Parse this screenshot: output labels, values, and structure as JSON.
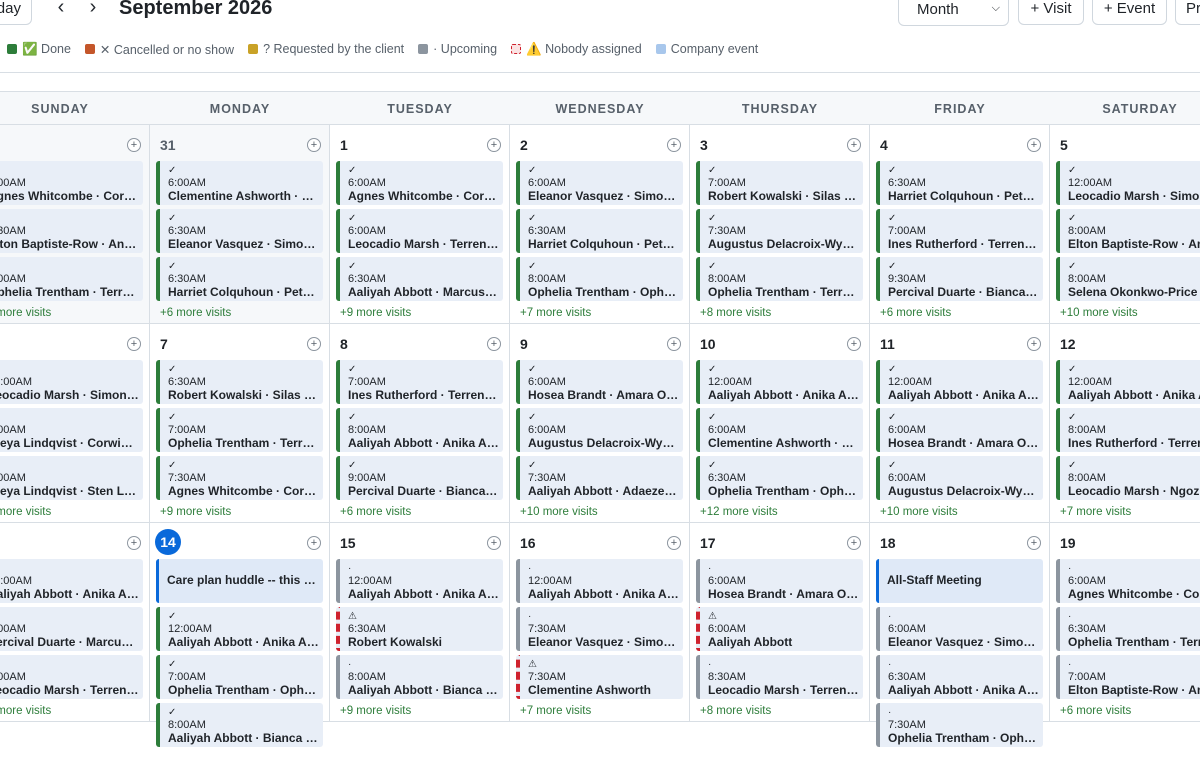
{
  "header": {
    "today_label": "Today",
    "prev_icon": "chevron-left-icon",
    "next_icon": "chevron-right-icon",
    "month_title": "September 2026",
    "view_select": {
      "value": "Month",
      "icon": "chevron-down-icon"
    },
    "add_visit_label": "+ Visit",
    "add_event_label": "+ Event",
    "print_label": "Print"
  },
  "legend": [
    {
      "label": "✅ Done",
      "color": "#2d7d3a"
    },
    {
      "label": "✕ Cancelled or no show",
      "color": "#c4562a"
    },
    {
      "label": "? Requested by the client",
      "color": "#c9a227"
    },
    {
      "label": "· Upcoming",
      "color": "#8c959f"
    },
    {
      "label": "⚠️ Nobody assigned",
      "color": "#cf222e",
      "style": "dashed"
    },
    {
      "label": "Company event",
      "color": "#a8c7ec"
    }
  ],
  "weekdays": [
    "SUNDAY",
    "MONDAY",
    "TUESDAY",
    "WEDNESDAY",
    "THURSDAY",
    "FRIDAY",
    "SATURDAY"
  ],
  "weeks": [
    [
      {
        "day": "30",
        "outside": true,
        "visits": [
          {
            "status": "done",
            "mark": "✓",
            "time": "6:00AM",
            "names": "Agnes Whitcombe · Corwin Al..."
          },
          {
            "status": "done",
            "mark": "✓",
            "time": "6:30AM",
            "names": "Elton Baptiste-Row · Anika Ab..."
          },
          {
            "status": "done",
            "mark": "✓",
            "time": "8:00AM",
            "names": "Ophelia Trentham · Terrence..."
          }
        ],
        "more": "+7 more visits"
      },
      {
        "day": "31",
        "outside": true,
        "visits": [
          {
            "status": "done",
            "mark": "✓",
            "time": "6:00AM",
            "names": "Clementine Ashworth · Kw..."
          },
          {
            "status": "done",
            "mark": "✓",
            "time": "6:30AM",
            "names": "Eleanor Vasquez · Simone ..."
          },
          {
            "status": "done",
            "mark": "✓",
            "time": "6:30AM",
            "names": "Harriet Colquhoun · Petra ..."
          }
        ],
        "more": "+6 more visits"
      },
      {
        "day": "1",
        "visits": [
          {
            "status": "done",
            "mark": "✓",
            "time": "6:00AM",
            "names": "Agnes Whitcombe · Corwi..."
          },
          {
            "status": "done",
            "mark": "✓",
            "time": "6:00AM",
            "names": "Leocadio Marsh · Terrence..."
          },
          {
            "status": "done",
            "mark": "✓",
            "time": "6:30AM",
            "names": "Aaliyah Abbott · Marcus D..."
          }
        ],
        "more": "+9 more visits"
      },
      {
        "day": "2",
        "visits": [
          {
            "status": "done",
            "mark": "✓",
            "time": "6:00AM",
            "names": "Eleanor Vasquez · Simone ..."
          },
          {
            "status": "done",
            "mark": "✓",
            "time": "6:30AM",
            "names": "Harriet Colquhoun · Petra ..."
          },
          {
            "status": "done",
            "mark": "✓",
            "time": "8:00AM",
            "names": "Ophelia Trentham · Opheli..."
          }
        ],
        "more": "+7 more visits"
      },
      {
        "day": "3",
        "visits": [
          {
            "status": "done",
            "mark": "✓",
            "time": "7:00AM",
            "names": "Robert Kowalski · Silas Br..."
          },
          {
            "status": "done",
            "mark": "✓",
            "time": "7:30AM",
            "names": "Augustus Delacroix-Wynn ..."
          },
          {
            "status": "done",
            "mark": "✓",
            "time": "8:00AM",
            "names": "Ophelia Trentham · Terren..."
          }
        ],
        "more": "+8 more visits"
      },
      {
        "day": "4",
        "visits": [
          {
            "status": "done",
            "mark": "✓",
            "time": "6:30AM",
            "names": "Harriet Colquhoun · Petra ..."
          },
          {
            "status": "done",
            "mark": "✓",
            "time": "7:00AM",
            "names": "Ines Rutherford · Terrence..."
          },
          {
            "status": "done",
            "mark": "✓",
            "time": "9:30AM",
            "names": "Percival Duarte · Bianca F..."
          }
        ],
        "more": "+6 more visits"
      },
      {
        "day": "5",
        "visits": [
          {
            "status": "done",
            "mark": "✓",
            "time": "12:00AM",
            "names": "Leocadio Marsh · Simone ..."
          },
          {
            "status": "done",
            "mark": "✓",
            "time": "8:00AM",
            "names": "Elton Baptiste-Row · Anika Ab..."
          },
          {
            "status": "done",
            "mark": "✓",
            "time": "8:00AM",
            "names": "Selena Okonkwo-Price"
          }
        ],
        "more": "+10 more visits"
      }
    ],
    [
      {
        "day": "6",
        "visits": [
          {
            "status": "done",
            "mark": "✓",
            "time": "12:00AM",
            "names": "Leocadio Marsh · Simone ..."
          },
          {
            "status": "done",
            "mark": "✓",
            "time": "6:00AM",
            "names": "Freya Lindqvist · Corwin Al..."
          },
          {
            "status": "done",
            "mark": "✓",
            "time": "6:00AM",
            "names": "Freya Lindqvist · Sten Lind..."
          }
        ],
        "more": "+8 more visits"
      },
      {
        "day": "7",
        "visits": [
          {
            "status": "done",
            "mark": "✓",
            "time": "6:30AM",
            "names": "Robert Kowalski · Silas Br..."
          },
          {
            "status": "done",
            "mark": "✓",
            "time": "7:00AM",
            "names": "Ophelia Trentham · Terren..."
          },
          {
            "status": "done",
            "mark": "✓",
            "time": "7:30AM",
            "names": "Agnes Whitcombe · Corwi..."
          }
        ],
        "more": "+9 more visits"
      },
      {
        "day": "8",
        "visits": [
          {
            "status": "done",
            "mark": "✓",
            "time": "7:00AM",
            "names": "Ines Rutherford · Terrence..."
          },
          {
            "status": "done",
            "mark": "✓",
            "time": "8:00AM",
            "names": "Aaliyah Abbott · Anika Ab..."
          },
          {
            "status": "done",
            "mark": "✓",
            "time": "9:00AM",
            "names": "Percival Duarte · Bianca F..."
          }
        ],
        "more": "+6 more visits"
      },
      {
        "day": "9",
        "visits": [
          {
            "status": "done",
            "mark": "✓",
            "time": "6:00AM",
            "names": "Hosea Brandt · Amara Odi..."
          },
          {
            "status": "done",
            "mark": "✓",
            "time": "6:00AM",
            "names": "Augustus Delacroix-Wynn ..."
          },
          {
            "status": "done",
            "mark": "✓",
            "time": "7:30AM",
            "names": "Aaliyah Abbott · Adaeze A..."
          }
        ],
        "more": "+10 more visits"
      },
      {
        "day": "10",
        "visits": [
          {
            "status": "done",
            "mark": "✓",
            "time": "12:00AM",
            "names": "Aaliyah Abbott · Anika Ab..."
          },
          {
            "status": "done",
            "mark": "✓",
            "time": "6:00AM",
            "names": "Clementine Ashworth · Kw..."
          },
          {
            "status": "done",
            "mark": "✓",
            "time": "6:30AM",
            "names": "Ophelia Trentham · Opheli..."
          }
        ],
        "more": "+12 more visits"
      },
      {
        "day": "11",
        "visits": [
          {
            "status": "done",
            "mark": "✓",
            "time": "12:00AM",
            "names": "Aaliyah Abbott · Anika Ab..."
          },
          {
            "status": "done",
            "mark": "✓",
            "time": "6:00AM",
            "names": "Hosea Brandt · Amara Odi..."
          },
          {
            "status": "done",
            "mark": "✓",
            "time": "6:00AM",
            "names": "Augustus Delacroix-Wynn ..."
          }
        ],
        "more": "+10 more visits"
      },
      {
        "day": "12",
        "visits": [
          {
            "status": "done",
            "mark": "✓",
            "time": "12:00AM",
            "names": "Aaliyah Abbott · Anika Ab..."
          },
          {
            "status": "done",
            "mark": "✓",
            "time": "8:00AM",
            "names": "Ines Rutherford · Terrence..."
          },
          {
            "status": "done",
            "mark": "✓",
            "time": "8:00AM",
            "names": "Leocadio Marsh · Ngozi A..."
          }
        ],
        "more": "+7 more visits"
      }
    ],
    [
      {
        "day": "13",
        "visits": [
          {
            "status": "done",
            "mark": "✓",
            "time": "12:00AM",
            "names": "Aaliyah Abbott · Anika Ab..."
          },
          {
            "status": "done",
            "mark": "✓",
            "time": "6:00AM",
            "names": "Percival Duarte · Marcus ..."
          },
          {
            "status": "done",
            "mark": "✓",
            "time": "6:00AM",
            "names": "Leocadio Marsh · Terrence..."
          }
        ],
        "more": "+8 more visits"
      },
      {
        "day": "14",
        "today": true,
        "visits": [
          {
            "status": "event",
            "title": "Care plan huddle -- this w..."
          },
          {
            "status": "done",
            "mark": "✓",
            "time": "12:00AM",
            "names": "Aaliyah Abbott · Anika Ab..."
          },
          {
            "status": "done",
            "mark": "✓",
            "time": "7:00AM",
            "names": "Ophelia Trentham · Opheli..."
          },
          {
            "status": "done",
            "mark": "✓",
            "time": "8:00AM",
            "names": "Aaliyah Abbott · Bianca Fe..."
          }
        ],
        "more": ""
      },
      {
        "day": "15",
        "visits": [
          {
            "status": "upcoming",
            "mark": "·",
            "time": "12:00AM",
            "names": "Aaliyah Abbott · Anika Ab..."
          },
          {
            "status": "unassigned",
            "mark": "⚠",
            "time": "6:30AM",
            "names": "Robert Kowalski"
          },
          {
            "status": "upcoming",
            "mark": "·",
            "time": "8:00AM",
            "names": "Aaliyah Abbott · Bianca Fe..."
          }
        ],
        "more": "+9 more visits"
      },
      {
        "day": "16",
        "visits": [
          {
            "status": "upcoming",
            "mark": "·",
            "time": "12:00AM",
            "names": "Aaliyah Abbott · Anika Ab..."
          },
          {
            "status": "upcoming",
            "mark": "·",
            "time": "7:30AM",
            "names": "Eleanor Vasquez · Simone ..."
          },
          {
            "status": "unassigned",
            "mark": "⚠",
            "time": "7:30AM",
            "names": "Clementine Ashworth"
          }
        ],
        "more": "+7 more visits"
      },
      {
        "day": "17",
        "visits": [
          {
            "status": "upcoming",
            "mark": "·",
            "time": "6:00AM",
            "names": "Hosea Brandt · Amara Odi..."
          },
          {
            "status": "unassigned",
            "mark": "⚠",
            "time": "6:00AM",
            "names": "Aaliyah Abbott"
          },
          {
            "status": "upcoming",
            "mark": "·",
            "time": "8:30AM",
            "names": "Leocadio Marsh · Terrence..."
          }
        ],
        "more": "+8 more visits"
      },
      {
        "day": "18",
        "visits": [
          {
            "status": "event",
            "title": "All-Staff Meeting"
          },
          {
            "status": "upcoming",
            "mark": "·",
            "time": "6:00AM",
            "names": "Eleanor Vasquez · Simone ..."
          },
          {
            "status": "upcoming",
            "mark": "·",
            "time": "6:30AM",
            "names": "Aaliyah Abbott · Anika Ab..."
          },
          {
            "status": "upcoming",
            "mark": "·",
            "time": "7:30AM",
            "names": "Ophelia Trentham · Opheli..."
          }
        ],
        "more": ""
      },
      {
        "day": "19",
        "visits": [
          {
            "status": "upcoming",
            "mark": "·",
            "time": "6:00AM",
            "names": "Agnes Whitcombe · Corwi..."
          },
          {
            "status": "upcoming",
            "mark": "·",
            "time": "6:30AM",
            "names": "Ophelia Trentham · Terre..."
          },
          {
            "status": "upcoming",
            "mark": "·",
            "time": "7:00AM",
            "names": "Elton Baptiste-Row · Anika..."
          }
        ],
        "more": "+6 more visits"
      }
    ]
  ]
}
